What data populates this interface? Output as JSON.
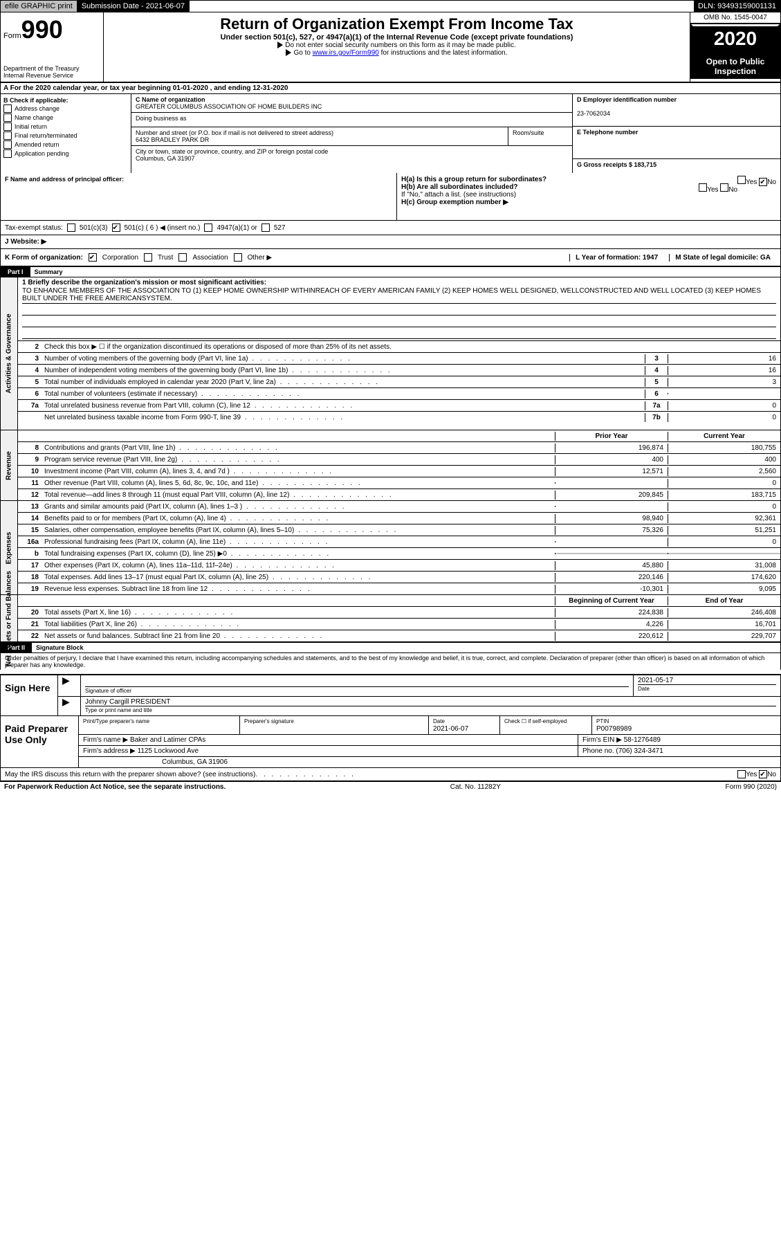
{
  "colors": {
    "black": "#000000",
    "white": "#ffffff",
    "grey": "#c0c0c0",
    "lightgrey": "#f0f0f0",
    "link": "#0000cc"
  },
  "topbar": {
    "efile": "efile GRAPHIC print",
    "submission_label": "Submission Date - 2021-06-07",
    "dln": "DLN: 93493159001131"
  },
  "header": {
    "form_label": "Form",
    "form_number": "990",
    "dept": "Department of the Treasury",
    "irs": "Internal Revenue Service",
    "title": "Return of Organization Exempt From Income Tax",
    "subtitle": "Under section 501(c), 527, or 4947(a)(1) of the Internal Revenue Code (except private foundations)",
    "ssn_note": "Do not enter social security numbers on this form as it may be made public.",
    "goto_pre": "Go to ",
    "goto_link": "www.irs.gov/Form990",
    "goto_post": " for instructions and the latest information.",
    "omb": "OMB No. 1545-0047",
    "year": "2020",
    "open": "Open to Public Inspection"
  },
  "rowA": "A  For the 2020 calendar year, or tax year beginning 01-01-2020    , and ending 12-31-2020",
  "colB": {
    "label": "B Check if applicable:",
    "items": [
      "Address change",
      "Name change",
      "Initial return",
      "Final return/terminated",
      "Amended return",
      "Application pending"
    ]
  },
  "colC": {
    "name_label": "C Name of organization",
    "name": "GREATER COLUMBUS ASSOCIATION OF HOME BUILDERS INC",
    "dba_label": "Doing business as",
    "dba": "",
    "street_label": "Number and street (or P.O. box if mail is not delivered to street address)",
    "room_label": "Room/suite",
    "street": "6432 BRADLEY PARK DR",
    "city_label": "City or town, state or province, country, and ZIP or foreign postal code",
    "city": "Columbus, GA   31907"
  },
  "colD": {
    "ein_label": "D Employer identification number",
    "ein": "23-7062034",
    "phone_label": "E Telephone number",
    "phone": "",
    "gross_label": "G Gross receipts $ 183,715"
  },
  "rowF": {
    "f_label": "F  Name and address of principal officer:",
    "ha": "H(a)  Is this a group return for subordinates?",
    "ha_yes": "Yes",
    "ha_no": "No",
    "hb": "H(b)  Are all subordinates included?",
    "hb_yes": "Yes",
    "hb_no": "No",
    "hb_note": "If \"No,\" attach a list. (see instructions)",
    "hc": "H(c)  Group exemption number ▶"
  },
  "taxex": {
    "label": "Tax-exempt status:",
    "a": "501(c)(3)",
    "b": "501(c) ( 6 ) ◀ (insert no.)",
    "c": "4947(a)(1) or",
    "d": "527"
  },
  "rowJ": {
    "label": "J   Website: ▶"
  },
  "rowK": {
    "label": "K Form of organization:",
    "corp": "Corporation",
    "trust": "Trust",
    "assoc": "Association",
    "other": "Other ▶",
    "L": "L Year of formation: 1947",
    "M": "M State of legal domicile: GA"
  },
  "partI": {
    "bar": "Part I",
    "title": "Summary"
  },
  "mission": {
    "q": "1  Briefly describe the organization's mission or most significant activities:",
    "text": "TO ENHANCE MEMBERS OF THE ASSOCIATION TO (1) KEEP HOME OWNERSHIP WITHINREACH OF EVERY AMERICAN FAMILY (2) KEEP HOMES WELL DESIGNED, WELLCONSTRUCTED AND WELL LOCATED (3) KEEP HOMES BUILT UNDER THE FREE AMERICANSYSTEM."
  },
  "vtabs": {
    "gov": "Activities & Governance",
    "rev": "Revenue",
    "exp": "Expenses",
    "net": "Net Assets or Fund Balances"
  },
  "gov_lines": [
    {
      "n": "2",
      "d": "Check this box ▶ ☐  if the organization discontinued its operations or disposed of more than 25% of its net assets."
    },
    {
      "n": "3",
      "d": "Number of voting members of the governing body (Part VI, line 1a)",
      "c": "3",
      "v": "16"
    },
    {
      "n": "4",
      "d": "Number of independent voting members of the governing body (Part VI, line 1b)",
      "c": "4",
      "v": "16"
    },
    {
      "n": "5",
      "d": "Total number of individuals employed in calendar year 2020 (Part V, line 2a)",
      "c": "5",
      "v": "3"
    },
    {
      "n": "6",
      "d": "Total number of volunteers (estimate if necessary)",
      "c": "6",
      "v": ""
    },
    {
      "n": "7a",
      "d": "Total unrelated business revenue from Part VIII, column (C), line 12",
      "c": "7a",
      "v": "0"
    },
    {
      "n": "",
      "d": "Net unrelated business taxable income from Form 990-T, line 39",
      "c": "7b",
      "v": "0"
    }
  ],
  "rev_header": {
    "py": "Prior Year",
    "cy": "Current Year"
  },
  "rev_lines": [
    {
      "n": "8",
      "d": "Contributions and grants (Part VIII, line 1h)",
      "py": "196,874",
      "cy": "180,755"
    },
    {
      "n": "9",
      "d": "Program service revenue (Part VIII, line 2g)",
      "py": "400",
      "cy": "400"
    },
    {
      "n": "10",
      "d": "Investment income (Part VIII, column (A), lines 3, 4, and 7d )",
      "py": "12,571",
      "cy": "2,560"
    },
    {
      "n": "11",
      "d": "Other revenue (Part VIII, column (A), lines 5, 6d, 8c, 9c, 10c, and 11e)",
      "py": "",
      "cy": "0"
    },
    {
      "n": "12",
      "d": "Total revenue—add lines 8 through 11 (must equal Part VIII, column (A), line 12)",
      "py": "209,845",
      "cy": "183,715"
    }
  ],
  "exp_lines": [
    {
      "n": "13",
      "d": "Grants and similar amounts paid (Part IX, column (A), lines 1–3 )",
      "py": "",
      "cy": "0"
    },
    {
      "n": "14",
      "d": "Benefits paid to or for members (Part IX, column (A), line 4)",
      "py": "98,940",
      "cy": "92,361"
    },
    {
      "n": "15",
      "d": "Salaries, other compensation, employee benefits (Part IX, column (A), lines 5–10)",
      "py": "75,326",
      "cy": "51,251"
    },
    {
      "n": "16a",
      "d": "Professional fundraising fees (Part IX, column (A), line 11e)",
      "py": "",
      "cy": "0"
    },
    {
      "n": "b",
      "d": "Total fundraising expenses (Part IX, column (D), line 25) ▶0",
      "py": "grey",
      "cy": "grey"
    },
    {
      "n": "17",
      "d": "Other expenses (Part IX, column (A), lines 11a–11d, 11f–24e)",
      "py": "45,880",
      "cy": "31,008"
    },
    {
      "n": "18",
      "d": "Total expenses. Add lines 13–17 (must equal Part IX, column (A), line 25)",
      "py": "220,146",
      "cy": "174,620"
    },
    {
      "n": "19",
      "d": "Revenue less expenses. Subtract line 18 from line 12",
      "py": "-10,301",
      "cy": "9,095"
    }
  ],
  "net_header": {
    "py": "Beginning of Current Year",
    "cy": "End of Year"
  },
  "net_lines": [
    {
      "n": "20",
      "d": "Total assets (Part X, line 16)",
      "py": "224,838",
      "cy": "246,408"
    },
    {
      "n": "21",
      "d": "Total liabilities (Part X, line 26)",
      "py": "4,226",
      "cy": "16,701"
    },
    {
      "n": "22",
      "d": "Net assets or fund balances. Subtract line 21 from line 20",
      "py": "220,612",
      "cy": "229,707"
    }
  ],
  "partII": {
    "bar": "Part II",
    "title": "Signature Block"
  },
  "penalties": "Under penalties of perjury, I declare that I have examined this return, including accompanying schedules and statements, and to the best of my knowledge and belief, it is true, correct, and complete. Declaration of preparer (other than officer) is based on all information of which preparer has any knowledge.",
  "sign": {
    "left": "Sign Here",
    "sig_label": "Signature of officer",
    "date": "2021-05-17",
    "date_label": "Date",
    "name": "Johnny Cargill  PRESIDENT",
    "name_label": "Type or print name and title"
  },
  "paid": {
    "left": "Paid Preparer Use Only",
    "h_name": "Print/Type preparer's name",
    "h_sig": "Preparer's signature",
    "h_date": "Date",
    "date": "2021-06-07",
    "h_check": "Check ☐  if self-employed",
    "h_ptin": "PTIN",
    "ptin": "P00798989",
    "firm_name_label": "Firm's name    ▶",
    "firm_name": "Baker and Latimer CPAs",
    "firm_ein_label": "Firm's EIN ▶",
    "firm_ein": "58-1276489",
    "firm_addr_label": "Firm's address ▶",
    "firm_addr1": "1125 Lockwood Ave",
    "firm_addr2": "Columbus, GA  31906",
    "phone_label": "Phone no.",
    "phone": "(706) 324-3471",
    "discuss": "May the IRS discuss this return with the preparer shown above? (see instructions)",
    "yes": "Yes",
    "no": "No"
  },
  "footer": {
    "left": "For Paperwork Reduction Act Notice, see the separate instructions.",
    "mid": "Cat. No. 11282Y",
    "right": "Form 990 (2020)"
  }
}
